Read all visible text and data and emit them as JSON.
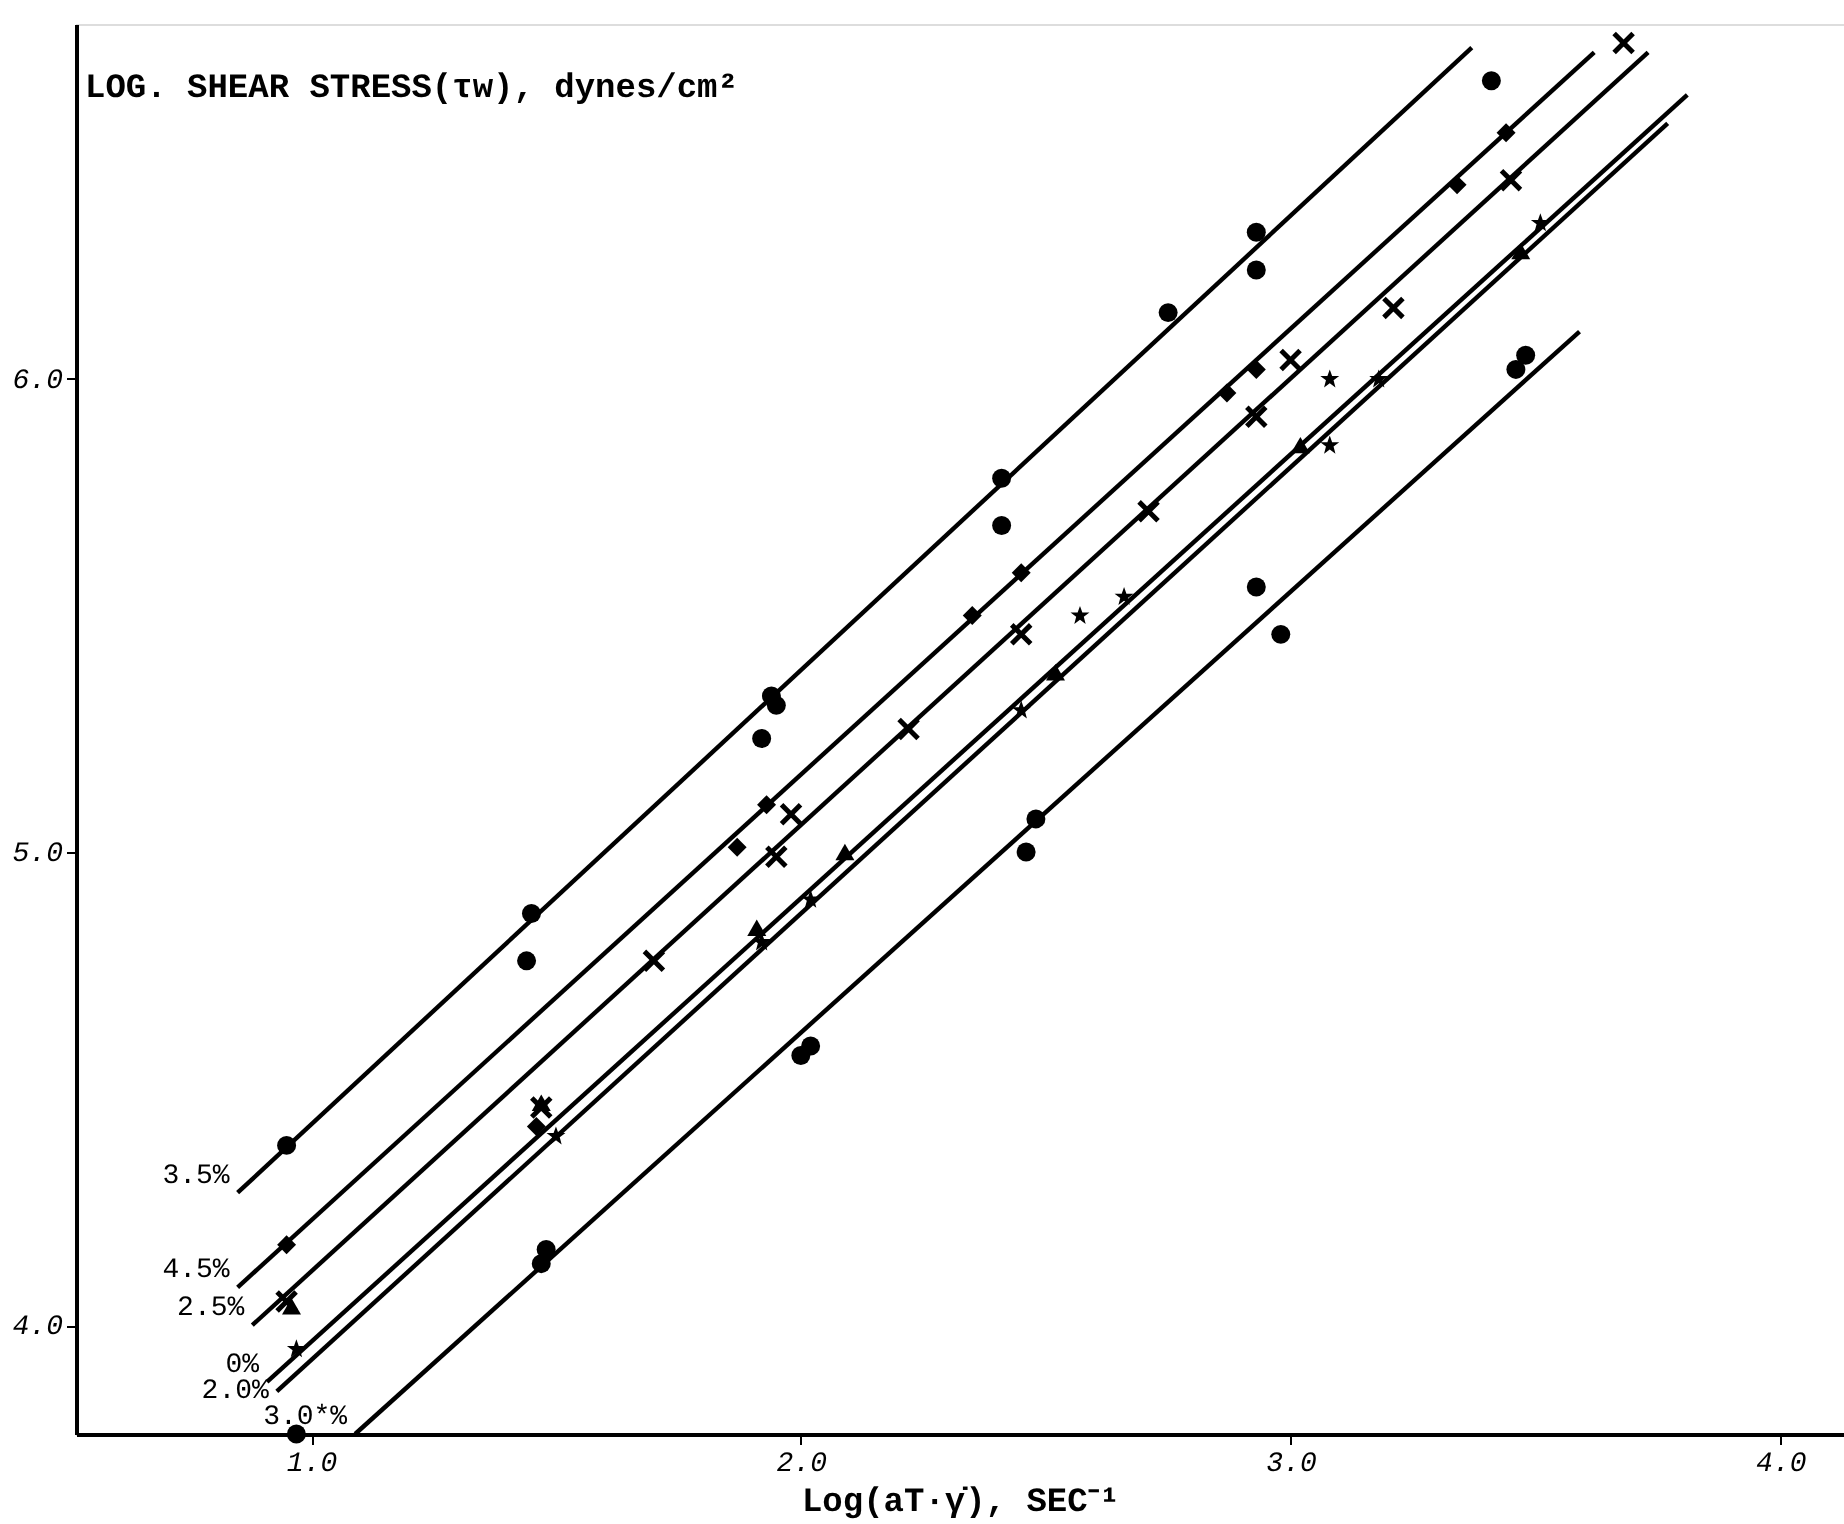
{
  "chart_data": {
    "type": "scatter",
    "xlabel": "Log(aT·γ̇), SEC⁻¹",
    "ylabel": "LOG. SHEAR STRESS(τw), dynes/cm²",
    "xlim": [
      0.52,
      4.13
    ],
    "ylim": [
      3.77,
      6.75
    ],
    "xticks": [
      {
        "value": 1,
        "label": "1.0"
      },
      {
        "value": 2,
        "label": "2.0"
      },
      {
        "value": 3,
        "label": "3.0"
      },
      {
        "value": 4,
        "label": "4.0"
      }
    ],
    "yticks": [
      {
        "value": 4,
        "label": "4.0"
      },
      {
        "value": 5,
        "label": "5.0"
      },
      {
        "value": 6,
        "label": "6.0"
      }
    ],
    "grid": false,
    "line_style": "solid",
    "series": [
      {
        "type": "line",
        "name": "3.5%",
        "color": "#000000",
        "x": [
          0.85,
          3.37
        ],
        "values": [
          4.28,
          6.7
        ]
      },
      {
        "type": "line",
        "name": "4.5%",
        "color": "#000000",
        "x": [
          0.85,
          3.62
        ],
        "values": [
          4.08,
          6.69
        ]
      },
      {
        "type": "line",
        "name": "2.5%",
        "color": "#000000",
        "x": [
          0.88,
          3.73
        ],
        "values": [
          4.0,
          6.69
        ]
      },
      {
        "type": "line",
        "name": "0%",
        "color": "#000000",
        "x": [
          0.91,
          3.81
        ],
        "values": [
          3.88,
          6.6
        ]
      },
      {
        "type": "line",
        "name": "2.0%",
        "color": "#000000",
        "x": [
          0.93,
          3.77
        ],
        "values": [
          3.86,
          6.54
        ]
      },
      {
        "type": "line",
        "name": "3.0*%",
        "color": "#000000",
        "x": [
          1.09,
          3.59
        ],
        "values": [
          3.77,
          6.1
        ]
      },
      {
        "color": "#000000",
        "marker": "circle",
        "x": [
          0.95,
          1.44,
          1.45,
          1.92,
          1.94,
          1.95,
          2.41,
          2.41,
          2.75,
          2.93,
          2.93,
          3.41
        ],
        "values": [
          4.38,
          4.77,
          4.87,
          5.24,
          5.33,
          5.31,
          5.69,
          5.79,
          6.14,
          6.31,
          6.23,
          6.63
        ]
      },
      {
        "color": "#000000",
        "marker": "diamond",
        "x": [
          0.95,
          1.46,
          1.87,
          1.93,
          2.35,
          2.45,
          2.87,
          2.93,
          3.34,
          3.44
        ],
        "values": [
          4.17,
          4.42,
          5.01,
          5.1,
          5.5,
          5.59,
          5.97,
          6.02,
          6.41,
          6.52
        ]
      },
      {
        "color": "#000000",
        "marker": "cross",
        "x": [
          0.95,
          1.47,
          1.7,
          1.95,
          1.98,
          2.22,
          2.45,
          2.71,
          2.93,
          3.0,
          3.21,
          3.45,
          3.68
        ],
        "values": [
          4.05,
          4.46,
          4.77,
          4.99,
          5.08,
          5.26,
          5.46,
          5.72,
          5.92,
          6.04,
          6.15,
          6.42,
          6.71
        ]
      },
      {
        "color": "#000000",
        "marker": "triangle",
        "x": [
          0.96,
          1.47,
          1.91,
          2.09,
          2.52,
          3.02,
          3.47
        ],
        "values": [
          4.04,
          4.47,
          4.84,
          5.0,
          5.38,
          5.86,
          6.27
        ]
      },
      {
        "color": "#000000",
        "marker": "star",
        "x": [
          0.97,
          1.5,
          1.92,
          2.02,
          2.45,
          2.57,
          2.66,
          3.08,
          3.08,
          3.18,
          3.51
        ],
        "values": [
          3.95,
          4.4,
          4.81,
          4.9,
          5.3,
          5.5,
          5.54,
          5.86,
          6.0,
          6.0,
          6.33
        ]
      },
      {
        "color": "#000000",
        "marker": "circle",
        "x": [
          0.97,
          1.47,
          1.48,
          2.0,
          2.02,
          2.46,
          2.48,
          2.93,
          2.98,
          3.46,
          3.48
        ],
        "values": [
          3.77,
          4.13,
          4.16,
          4.57,
          4.59,
          5.0,
          5.07,
          5.56,
          5.46,
          6.02,
          6.05
        ]
      }
    ]
  }
}
